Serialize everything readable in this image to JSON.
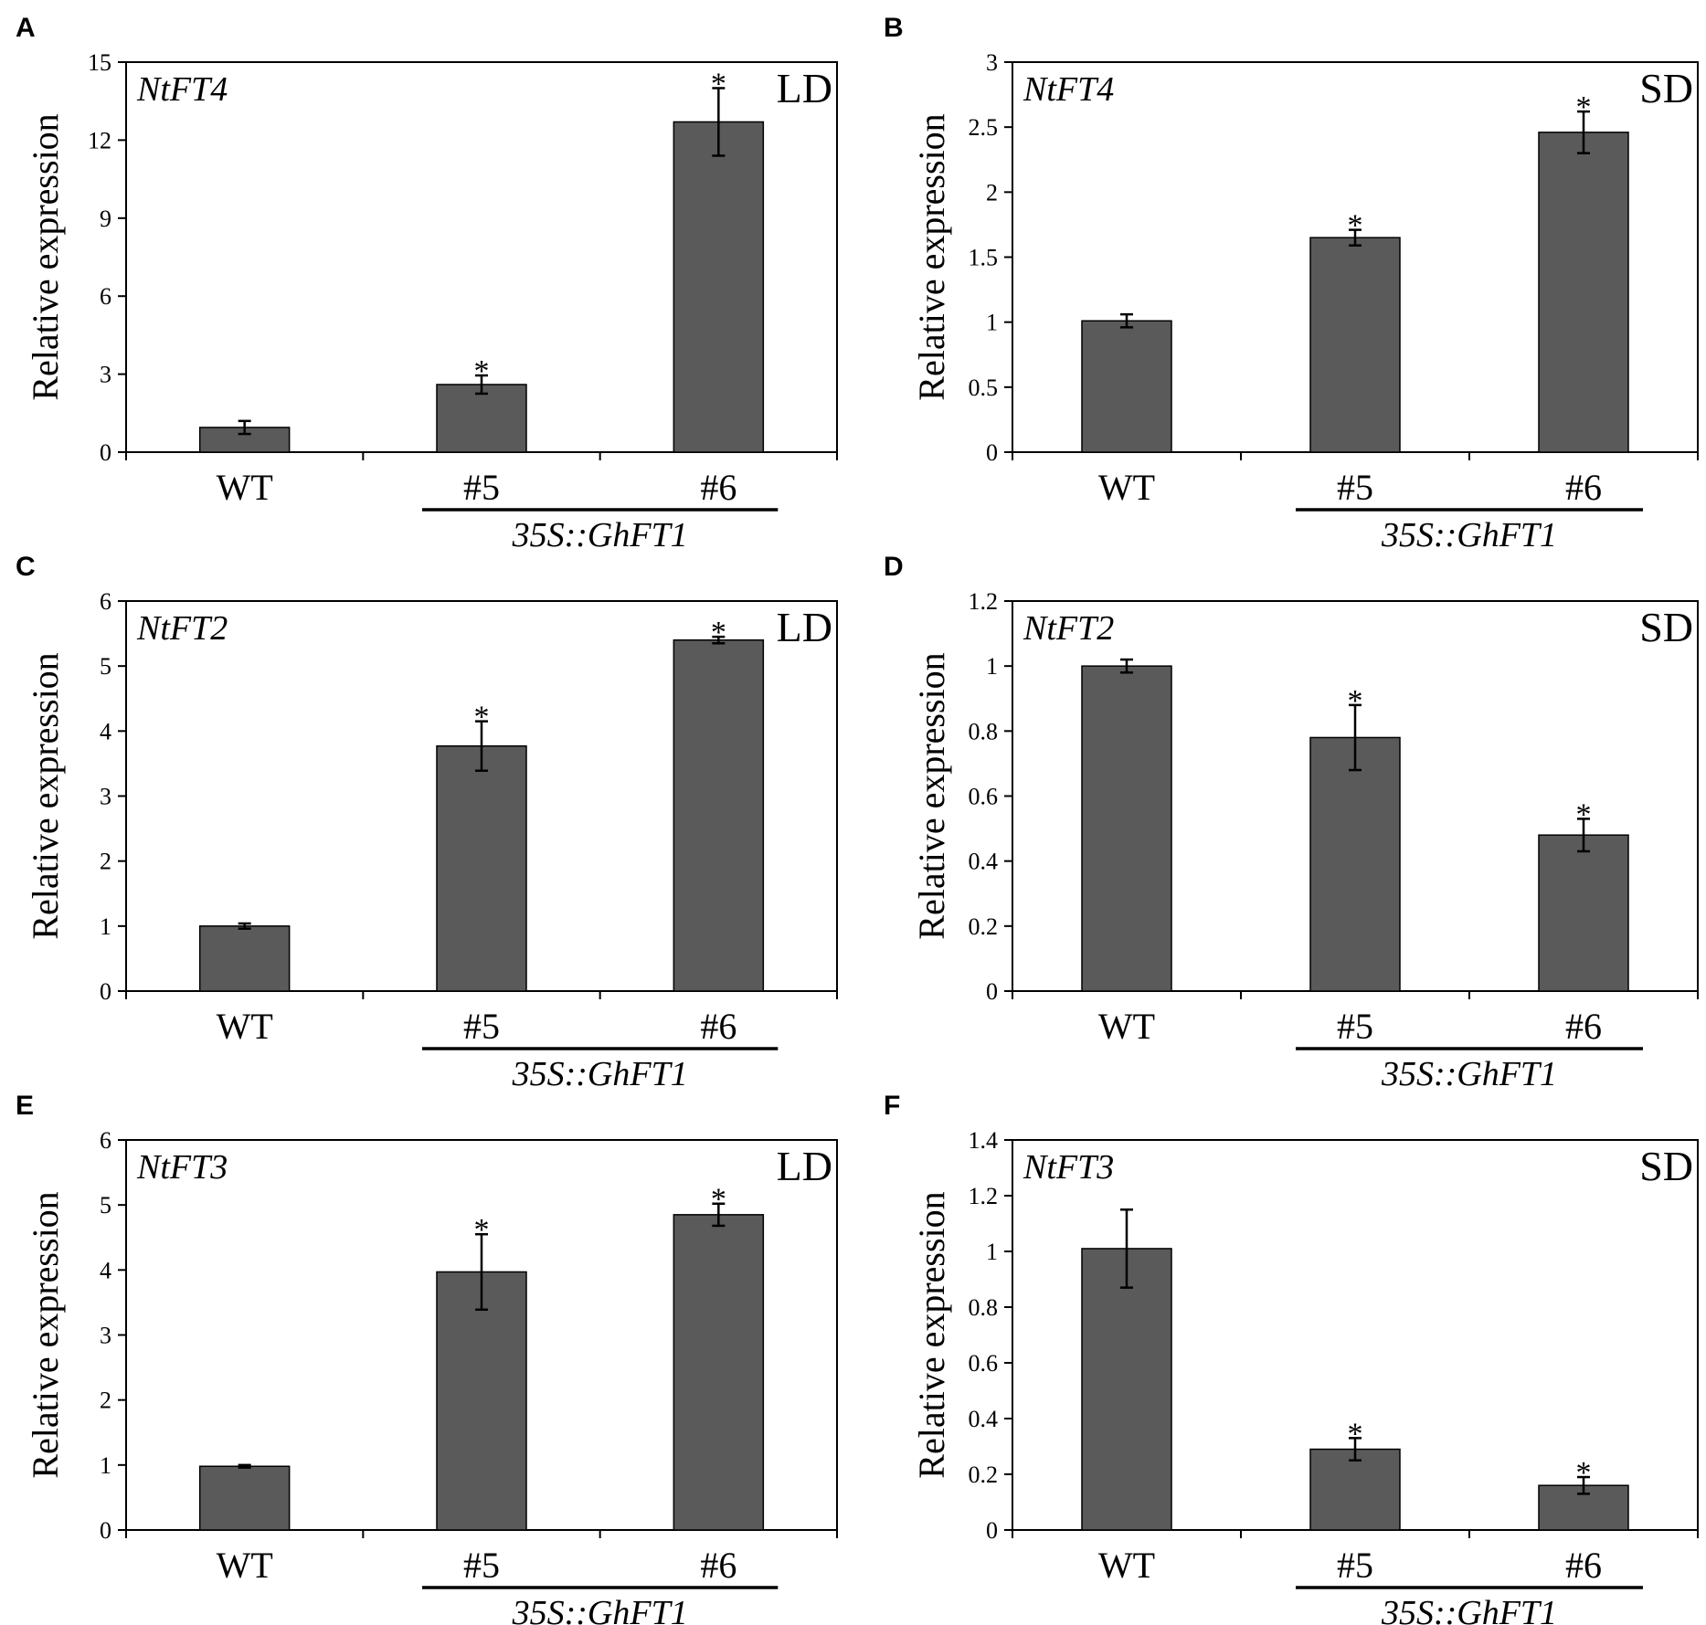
{
  "chart_data": [
    {
      "panel_label": "A",
      "type": "bar",
      "gene": "NtFT4",
      "condition": "LD",
      "ylabel": "Relative expression",
      "categories": [
        "WT",
        "#5",
        "#6"
      ],
      "group_label": "35S::GhFT1",
      "values": [
        0.95,
        2.6,
        12.7
      ],
      "errors": [
        0.25,
        0.35,
        1.3
      ],
      "significant": [
        false,
        true,
        true
      ],
      "ylim": [
        0,
        15
      ],
      "yticks": [
        "0",
        "3",
        "6",
        "9",
        "12",
        "15"
      ]
    },
    {
      "panel_label": "B",
      "type": "bar",
      "gene": "NtFT4",
      "condition": "SD",
      "ylabel": "Relative expression",
      "categories": [
        "WT",
        "#5",
        "#6"
      ],
      "group_label": "35S::GhFT1",
      "values": [
        1.01,
        1.65,
        2.46
      ],
      "errors": [
        0.05,
        0.06,
        0.16
      ],
      "significant": [
        false,
        true,
        true
      ],
      "ylim": [
        0,
        3
      ],
      "yticks": [
        "0",
        "0.5",
        "1",
        "1.5",
        "2",
        "2.5",
        "3"
      ]
    },
    {
      "panel_label": "C",
      "type": "bar",
      "gene": "NtFT2",
      "condition": "LD",
      "ylabel": "Relative expression",
      "categories": [
        "WT",
        "#5",
        "#6"
      ],
      "group_label": "35S::GhFT1",
      "values": [
        1.0,
        3.77,
        5.4
      ],
      "errors": [
        0.04,
        0.38,
        0.05
      ],
      "significant": [
        false,
        true,
        true
      ],
      "ylim": [
        0,
        6
      ],
      "yticks": [
        "0",
        "1",
        "2",
        "3",
        "4",
        "5",
        "6"
      ]
    },
    {
      "panel_label": "D",
      "type": "bar",
      "gene": "NtFT2",
      "condition": "SD",
      "ylabel": "Relative expression",
      "categories": [
        "WT",
        "#5",
        "#6"
      ],
      "group_label": "35S::GhFT1",
      "values": [
        1.0,
        0.78,
        0.48
      ],
      "errors": [
        0.02,
        0.1,
        0.05
      ],
      "significant": [
        false,
        true,
        true
      ],
      "ylim": [
        0,
        1.2
      ],
      "yticks": [
        "0",
        "0.2",
        "0.4",
        "0.6",
        "0.8",
        "1",
        "1.2"
      ]
    },
    {
      "panel_label": "E",
      "type": "bar",
      "gene": "NtFT3",
      "condition": "LD",
      "ylabel": "Relative expression",
      "categories": [
        "WT",
        "#5",
        "#6"
      ],
      "group_label": "35S::GhFT1",
      "values": [
        0.98,
        3.97,
        4.85
      ],
      "errors": [
        0.02,
        0.58,
        0.17
      ],
      "significant": [
        false,
        true,
        true
      ],
      "ylim": [
        0,
        6
      ],
      "yticks": [
        "0",
        "1",
        "2",
        "3",
        "4",
        "5",
        "6"
      ]
    },
    {
      "panel_label": "F",
      "type": "bar",
      "gene": "NtFT3",
      "condition": "SD",
      "ylabel": "Relative expression",
      "categories": [
        "WT",
        "#5",
        "#6"
      ],
      "group_label": "35S::GhFT1",
      "values": [
        1.01,
        0.29,
        0.16
      ],
      "errors": [
        0.14,
        0.04,
        0.03
      ],
      "significant": [
        false,
        true,
        true
      ],
      "ylim": [
        0,
        1.4
      ],
      "yticks": [
        "0",
        "0.2",
        "0.4",
        "0.6",
        "0.8",
        "1",
        "1.2",
        "1.4"
      ]
    }
  ],
  "style": {
    "bar_fill": "#5a5a5a",
    "axis_color": "#000000",
    "text_color": "#000000",
    "significance_marker": "*"
  }
}
